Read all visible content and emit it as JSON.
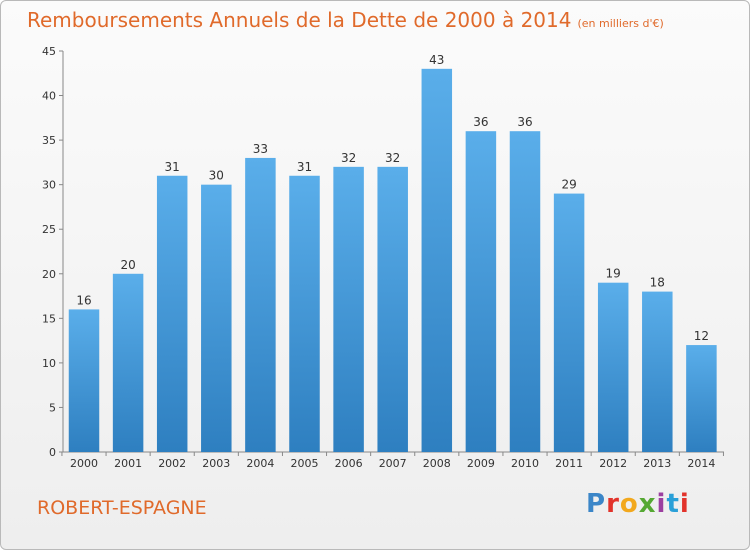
{
  "header": {
    "title": "Remboursements Annuels de la Dette de 2000 à 2014",
    "unit": "(en milliers d'€)"
  },
  "footer": {
    "town": "ROBERT-ESPAGNE",
    "logo": "Proxiti"
  },
  "colors": {
    "accent": "#e06a2b",
    "bar_top": "#5aaeea",
    "bar_bottom": "#2e7fc0"
  },
  "chart_data": {
    "type": "bar",
    "title": "Remboursements Annuels de la Dette de 2000 à 2014",
    "ylabel": "en milliers d'€",
    "xlabel": "",
    "categories": [
      "2000",
      "2001",
      "2002",
      "2003",
      "2004",
      "2005",
      "2006",
      "2007",
      "2008",
      "2009",
      "2010",
      "2011",
      "2012",
      "2013",
      "2014"
    ],
    "values": [
      16,
      20,
      31,
      30,
      33,
      31,
      32,
      32,
      43,
      36,
      36,
      29,
      19,
      18,
      12
    ],
    "ylim": [
      0,
      45
    ],
    "yticks": [
      0,
      5,
      10,
      15,
      20,
      25,
      30,
      35,
      40,
      45
    ],
    "grid": false,
    "legend": "none"
  }
}
